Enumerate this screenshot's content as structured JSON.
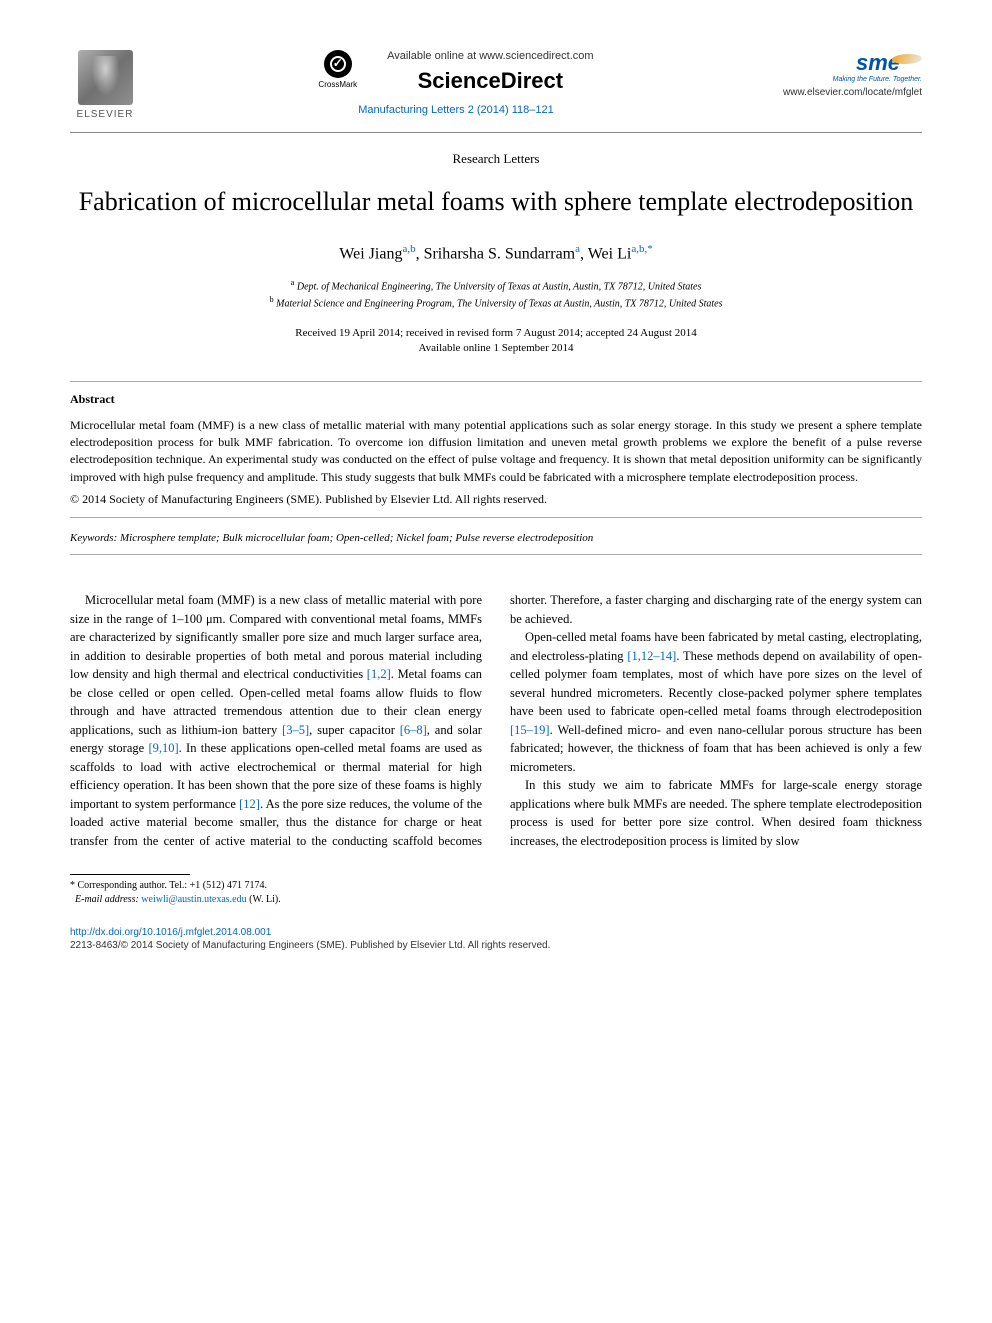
{
  "header": {
    "elsevier_label": "ELSEVIER",
    "crossmark_label": "CrossMark",
    "available_online": "Available online at www.sciencedirect.com",
    "sciencedirect": "ScienceDirect",
    "journal_ref": "Manufacturing Letters 2 (2014) 118–121",
    "sme_text": "sme",
    "sme_tagline": "Making the Future. Together.",
    "locate_link": "www.elsevier.com/locate/mfglet"
  },
  "article": {
    "type": "Research Letters",
    "title": "Fabrication of microcellular metal foams with sphere template electrodeposition",
    "authors_html": "Wei Jiang",
    "author1": "Wei Jiang",
    "author1_sup": "a,b",
    "author2": "Sriharsha S. Sundarram",
    "author2_sup": "a",
    "author3": "Wei Li",
    "author3_sup": "a,b,*",
    "affil_a_sup": "a",
    "affil_a": "Dept. of Mechanical Engineering, The University of Texas at Austin, Austin, TX 78712, United States",
    "affil_b_sup": "b",
    "affil_b": "Material Science and Engineering Program, The University of Texas at Austin, Austin, TX 78712, United States",
    "dates_line1": "Received 19 April 2014; received in revised form 7 August 2014; accepted 24 August 2014",
    "dates_line2": "Available online 1 September 2014"
  },
  "abstract": {
    "heading": "Abstract",
    "text": "Microcellular metal foam (MMF) is a new class of metallic material with many potential applications such as solar energy storage. In this study we present a sphere template electrodeposition process for bulk MMF fabrication. To overcome ion diffusion limitation and uneven metal growth problems we explore the benefit of a pulse reverse electrodeposition technique. An experimental study was conducted on the effect of pulse voltage and frequency. It is shown that metal deposition uniformity can be significantly improved with high pulse frequency and amplitude. This study suggests that bulk MMFs could be fabricated with a microsphere template electrodeposition process.",
    "copyright": "© 2014 Society of Manufacturing Engineers (SME). Published by Elsevier Ltd. All rights reserved."
  },
  "keywords": {
    "label": "Keywords:",
    "text": "Microsphere template; Bulk microcellular foam; Open-celled; Nickel foam; Pulse reverse electrodeposition"
  },
  "body": {
    "p1_a": "Microcellular metal foam (MMF) is a new class of metallic material with pore size in the range of 1–100 μm. Compared with conventional metal foams, MMFs are characterized by significantly smaller pore size and much larger surface area, in addition to desirable properties of both metal and porous material including low density and high thermal and electrical conductivities ",
    "ref_1_2": "[1,2]",
    "p1_b": ". Metal foams can be close celled or open celled. Open-celled metal foams allow fluids to flow through and have attracted tremendous attention due to their clean energy applications, such as lithium-ion battery ",
    "ref_3_5": "[3–5]",
    "p1_c": ", super capacitor ",
    "ref_6_8": "[6–8]",
    "p1_d": ", and solar energy storage ",
    "ref_9_10": "[9,10]",
    "p1_e": ". In these applications open-celled metal foams are used as scaffolds to load with active electrochemical or thermal material for high efficiency operation. It has been shown that the pore size of these foams is highly important to system performance ",
    "ref_12": "[12]",
    "p1_f": ". As the pore size reduces, the volume of the loaded active material become smaller, thus the distance for charge or heat transfer from the center of active material to the conducting scaffold becomes shorter. Therefore, a faster charging and discharging rate of the energy system can be achieved.",
    "p2_a": "Open-celled metal foams have been fabricated by metal casting, electroplating, and electroless-plating ",
    "ref_1_12_14": "[1,12–14]",
    "p2_b": ". These methods depend on availability of open-celled polymer foam templates, most of which have pore sizes on the level of several hundred micrometers. Recently close-packed polymer sphere templates have been used to fabricate open-celled metal foams through electrodeposition ",
    "ref_15_19": "[15–19]",
    "p2_c": ". Well-defined micro- and even nano-cellular porous structure has been fabricated; however, the thickness of foam that has been achieved is only a few micrometers.",
    "p3": "In this study we aim to fabricate MMFs for large-scale energy storage applications where bulk MMFs are needed. The sphere template electrodeposition process is used for better pore size control. When desired foam thickness increases, the electrodeposition process is limited by slow"
  },
  "footnotes": {
    "corr_marker": "*",
    "corr_text": "Corresponding author. Tel.: +1 (512) 471 7174.",
    "email_label": "E-mail address:",
    "email": "weiwli@austin.utexas.edu",
    "email_who": "(W. Li)."
  },
  "footer": {
    "doi": "http://dx.doi.org/10.1016/j.mfglet.2014.08.001",
    "issn_copyright": "2213-8463/© 2014 Society of Manufacturing Engineers (SME). Published by Elsevier Ltd. All rights reserved."
  },
  "colors": {
    "link": "#0066cc",
    "sme_blue": "#0055a5",
    "sme_gold": "#f5a623",
    "text": "#000000",
    "rule": "#888888"
  },
  "typography": {
    "body_fontsize_pt": 12.5,
    "title_fontsize_pt": 26,
    "abstract_fontsize_pt": 12,
    "footnote_fontsize_pt": 10
  }
}
